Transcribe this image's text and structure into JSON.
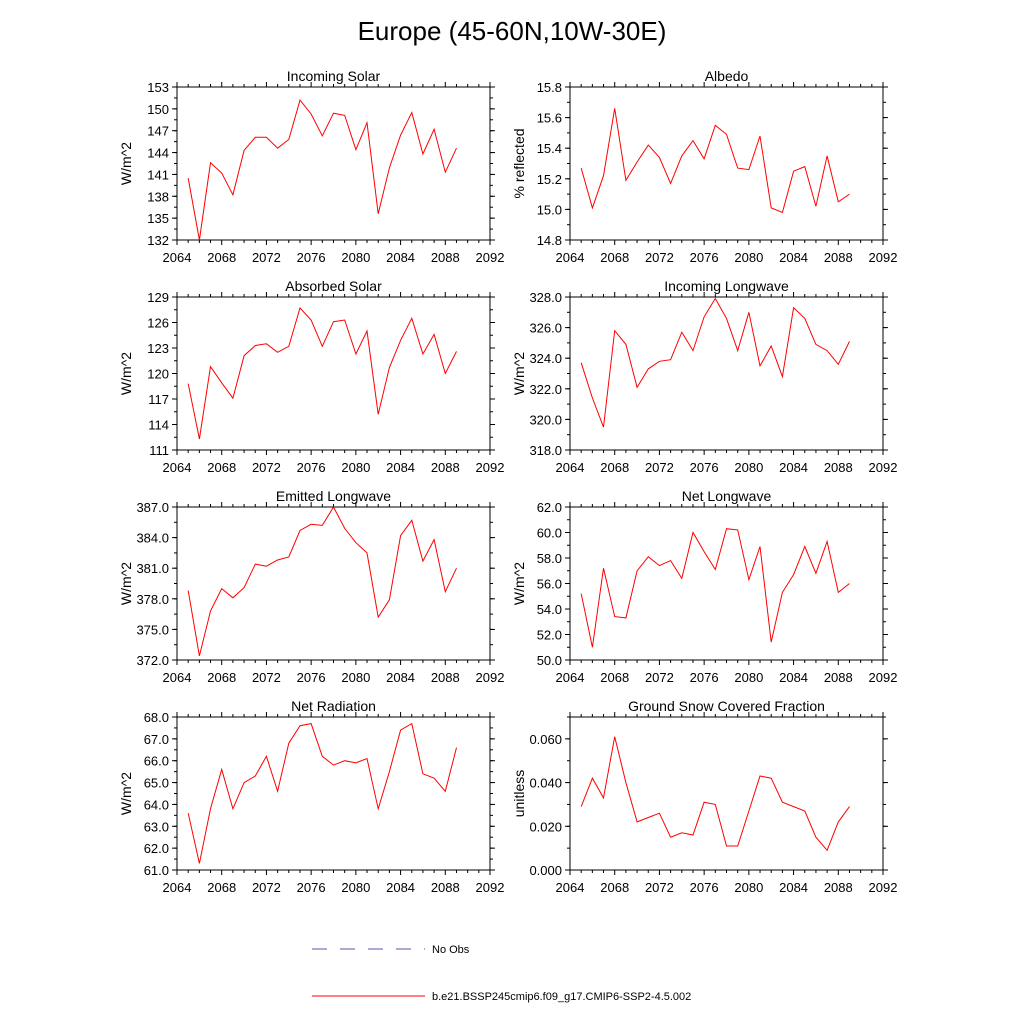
{
  "page_title": "Europe (45-60N,10W-30E)",
  "legend": {
    "obs_label": "No Obs",
    "obs_color": "#5555aa",
    "model_label": "b.e21.BSSP245cmip6.f09_g17.CMIP6-SSP2-4.5.002",
    "model_color": "#ff0000"
  },
  "chart_data": [
    {
      "type": "line",
      "title": "Incoming Solar",
      "ylabel": "W/m^2",
      "xlim": [
        2064,
        2092
      ],
      "ylim": [
        132,
        153
      ],
      "xticks": [
        "2064",
        "2068",
        "2072",
        "2076",
        "2080",
        "2084",
        "2088",
        "2092"
      ],
      "yticks": [
        "132",
        "135",
        "138",
        "141",
        "144",
        "147",
        "150",
        "153"
      ],
      "x": [
        2065,
        2066,
        2067,
        2068,
        2069,
        2070,
        2071,
        2072,
        2073,
        2074,
        2075,
        2076,
        2077,
        2078,
        2079,
        2080,
        2081,
        2082,
        2083,
        2084,
        2085,
        2086,
        2087,
        2088,
        2089
      ],
      "series": [
        {
          "name": "b.e21.BSSP245cmip6.f09_g17.CMIP6-SSP2-4.5.002",
          "values": [
            140.5,
            132.0,
            142.6,
            141.2,
            138.2,
            144.3,
            146.1,
            146.1,
            144.6,
            145.8,
            151.2,
            149.3,
            146.3,
            149.4,
            149.1,
            144.4,
            148.1,
            135.6,
            141.9,
            146.4,
            149.5,
            143.8,
            147.2,
            141.3,
            144.6
          ]
        }
      ]
    },
    {
      "type": "line",
      "title": "Albedo",
      "ylabel": "% reflected",
      "xlim": [
        2064,
        2092
      ],
      "ylim": [
        14.8,
        15.8
      ],
      "xticks": [
        "2064",
        "2068",
        "2072",
        "2076",
        "2080",
        "2084",
        "2088",
        "2092"
      ],
      "yticks": [
        "14.8",
        "15.0",
        "15.2",
        "15.4",
        "15.6",
        "15.8"
      ],
      "x": [
        2065,
        2066,
        2067,
        2068,
        2069,
        2070,
        2071,
        2072,
        2073,
        2074,
        2075,
        2076,
        2077,
        2078,
        2079,
        2080,
        2081,
        2082,
        2083,
        2084,
        2085,
        2086,
        2087,
        2088,
        2089
      ],
      "series": [
        {
          "name": "b.e21.BSSP245cmip6.f09_g17.CMIP6-SSP2-4.5.002",
          "values": [
            15.27,
            15.01,
            15.22,
            15.66,
            15.19,
            15.31,
            15.42,
            15.34,
            15.17,
            15.35,
            15.45,
            15.33,
            15.55,
            15.49,
            15.27,
            15.26,
            15.48,
            15.01,
            14.98,
            15.25,
            15.28,
            15.02,
            15.35,
            15.05,
            15.1
          ]
        }
      ]
    },
    {
      "type": "line",
      "title": "Absorbed Solar",
      "ylabel": "W/m^2",
      "xlim": [
        2064,
        2092
      ],
      "ylim": [
        111,
        129
      ],
      "xticks": [
        "2064",
        "2068",
        "2072",
        "2076",
        "2080",
        "2084",
        "2088",
        "2092"
      ],
      "yticks": [
        "111",
        "114",
        "117",
        "120",
        "123",
        "126",
        "129"
      ],
      "x": [
        2065,
        2066,
        2067,
        2068,
        2069,
        2070,
        2071,
        2072,
        2073,
        2074,
        2075,
        2076,
        2077,
        2078,
        2079,
        2080,
        2081,
        2082,
        2083,
        2084,
        2085,
        2086,
        2087,
        2088,
        2089
      ],
      "series": [
        {
          "name": "b.e21.BSSP245cmip6.f09_g17.CMIP6-SSP2-4.5.002",
          "values": [
            118.8,
            112.3,
            120.8,
            118.9,
            117.1,
            122.1,
            123.3,
            123.5,
            122.5,
            123.2,
            127.7,
            126.3,
            123.2,
            126.1,
            126.3,
            122.3,
            125.0,
            115.2,
            120.7,
            123.9,
            126.5,
            122.3,
            124.6,
            120.0,
            122.6
          ]
        }
      ]
    },
    {
      "type": "line",
      "title": "Incoming Longwave",
      "ylabel": "W/m^2",
      "xlim": [
        2064,
        2092
      ],
      "ylim": [
        318.0,
        328.0
      ],
      "xticks": [
        "2064",
        "2068",
        "2072",
        "2076",
        "2080",
        "2084",
        "2088",
        "2092"
      ],
      "yticks": [
        "318.0",
        "320.0",
        "322.0",
        "324.0",
        "326.0",
        "328.0"
      ],
      "x": [
        2065,
        2066,
        2067,
        2068,
        2069,
        2070,
        2071,
        2072,
        2073,
        2074,
        2075,
        2076,
        2077,
        2078,
        2079,
        2080,
        2081,
        2082,
        2083,
        2084,
        2085,
        2086,
        2087,
        2088,
        2089
      ],
      "series": [
        {
          "name": "b.e21.BSSP245cmip6.f09_g17.CMIP6-SSP2-4.5.002",
          "values": [
            323.7,
            321.4,
            319.5,
            325.8,
            324.9,
            322.1,
            323.3,
            323.8,
            323.9,
            325.7,
            324.5,
            326.7,
            327.9,
            326.6,
            324.5,
            327.0,
            323.5,
            324.8,
            322.8,
            327.3,
            326.6,
            324.9,
            324.5,
            323.6,
            325.1
          ]
        }
      ]
    },
    {
      "type": "line",
      "title": "Emitted Longwave",
      "ylabel": "W/m^2",
      "xlim": [
        2064,
        2092
      ],
      "ylim": [
        372.0,
        387.0
      ],
      "xticks": [
        "2064",
        "2068",
        "2072",
        "2076",
        "2080",
        "2084",
        "2088",
        "2092"
      ],
      "yticks": [
        "372.0",
        "375.0",
        "378.0",
        "381.0",
        "384.0",
        "387.0"
      ],
      "x": [
        2065,
        2066,
        2067,
        2068,
        2069,
        2070,
        2071,
        2072,
        2073,
        2074,
        2075,
        2076,
        2077,
        2078,
        2079,
        2080,
        2081,
        2082,
        2083,
        2084,
        2085,
        2086,
        2087,
        2088,
        2089
      ],
      "series": [
        {
          "name": "b.e21.BSSP245cmip6.f09_g17.CMIP6-SSP2-4.5.002",
          "values": [
            378.8,
            372.4,
            376.8,
            379.0,
            378.1,
            379.1,
            381.4,
            381.2,
            381.8,
            382.1,
            384.7,
            385.3,
            385.2,
            387.0,
            384.9,
            383.5,
            382.5,
            376.2,
            377.9,
            384.2,
            385.7,
            381.7,
            383.8,
            378.7,
            381.0
          ]
        }
      ]
    },
    {
      "type": "line",
      "title": "Net Longwave",
      "ylabel": "W/m^2",
      "xlim": [
        2064,
        2092
      ],
      "ylim": [
        50.0,
        62.0
      ],
      "xticks": [
        "2064",
        "2068",
        "2072",
        "2076",
        "2080",
        "2084",
        "2088",
        "2092"
      ],
      "yticks": [
        "50.0",
        "52.0",
        "54.0",
        "56.0",
        "58.0",
        "60.0",
        "62.0"
      ],
      "x": [
        2065,
        2066,
        2067,
        2068,
        2069,
        2070,
        2071,
        2072,
        2073,
        2074,
        2075,
        2076,
        2077,
        2078,
        2079,
        2080,
        2081,
        2082,
        2083,
        2084,
        2085,
        2086,
        2087,
        2088,
        2089
      ],
      "series": [
        {
          "name": "b.e21.BSSP245cmip6.f09_g17.CMIP6-SSP2-4.5.002",
          "values": [
            55.2,
            51.0,
            57.2,
            53.4,
            53.3,
            57.0,
            58.1,
            57.4,
            57.8,
            56.4,
            60.0,
            58.5,
            57.1,
            60.3,
            60.2,
            56.3,
            58.9,
            51.4,
            55.3,
            56.7,
            58.9,
            56.8,
            59.3,
            55.3,
            56.0
          ]
        }
      ]
    },
    {
      "type": "line",
      "title": "Net Radiation",
      "ylabel": "W/m^2",
      "xlim": [
        2064,
        2092
      ],
      "ylim": [
        61.0,
        68.0
      ],
      "xticks": [
        "2064",
        "2068",
        "2072",
        "2076",
        "2080",
        "2084",
        "2088",
        "2092"
      ],
      "yticks": [
        "61.0",
        "62.0",
        "63.0",
        "64.0",
        "65.0",
        "66.0",
        "67.0",
        "68.0"
      ],
      "x": [
        2065,
        2066,
        2067,
        2068,
        2069,
        2070,
        2071,
        2072,
        2073,
        2074,
        2075,
        2076,
        2077,
        2078,
        2079,
        2080,
        2081,
        2082,
        2083,
        2084,
        2085,
        2086,
        2087,
        2088,
        2089
      ],
      "series": [
        {
          "name": "b.e21.BSSP245cmip6.f09_g17.CMIP6-SSP2-4.5.002",
          "values": [
            63.6,
            61.3,
            63.8,
            65.6,
            63.8,
            65.0,
            65.3,
            66.2,
            64.6,
            66.8,
            67.6,
            67.7,
            66.2,
            65.8,
            66.0,
            65.9,
            66.1,
            63.8,
            65.5,
            67.4,
            67.7,
            65.4,
            65.2,
            64.6,
            66.6
          ]
        }
      ]
    },
    {
      "type": "line",
      "title": "Ground Snow Covered Fraction",
      "ylabel": "unitless",
      "xlim": [
        2064,
        2092
      ],
      "ylim": [
        0.0,
        0.07
      ],
      "xticks": [
        "2064",
        "2068",
        "2072",
        "2076",
        "2080",
        "2084",
        "2088",
        "2092"
      ],
      "yticks": [
        "0.000",
        "0.020",
        "0.040",
        "0.060"
      ],
      "ytick_values": [
        0.0,
        0.02,
        0.04,
        0.06
      ],
      "x": [
        2065,
        2066,
        2067,
        2068,
        2069,
        2070,
        2071,
        2072,
        2073,
        2074,
        2075,
        2076,
        2077,
        2078,
        2079,
        2080,
        2081,
        2082,
        2083,
        2084,
        2085,
        2086,
        2087,
        2088,
        2089
      ],
      "series": [
        {
          "name": "b.e21.BSSP245cmip6.f09_g17.CMIP6-SSP2-4.5.002",
          "values": [
            0.029,
            0.042,
            0.033,
            0.061,
            0.04,
            0.022,
            0.024,
            0.026,
            0.015,
            0.017,
            0.016,
            0.031,
            0.03,
            0.011,
            0.011,
            0.027,
            0.043,
            0.042,
            0.031,
            0.029,
            0.027,
            0.015,
            0.009,
            0.022,
            0.029
          ]
        }
      ]
    }
  ]
}
